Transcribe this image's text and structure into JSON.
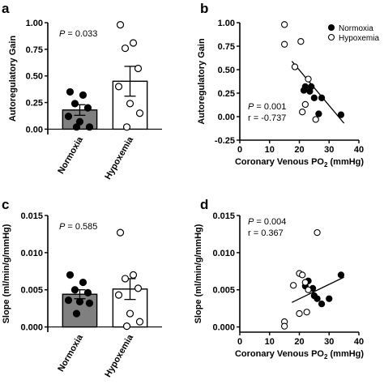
{
  "chart_data": [
    {
      "panel": "a",
      "type": "bar",
      "categories": [
        "Normoxia",
        "Hypoxemia"
      ],
      "ylabel": "Autoregulatory Gain",
      "ylim": [
        -0.05,
        1.0
      ],
      "yticks": [
        "0.00",
        "0.25",
        "0.50",
        "0.75",
        "1.00"
      ],
      "annotation": "P = 0.033",
      "means": [
        0.18,
        0.45
      ],
      "errors": [
        0.05,
        0.14
      ],
      "bar_colors": [
        "#808080",
        "#ffffff"
      ],
      "points": [
        [
          0.35,
          0.32,
          0.24,
          0.2,
          0.12,
          0.07,
          0.02,
          0.02
        ],
        [
          0.98,
          0.81,
          0.76,
          0.57,
          0.4,
          0.24,
          0.15,
          0.02
        ]
      ]
    },
    {
      "panel": "b",
      "type": "scatter",
      "xlabel_main": "Coronary Venous PO",
      "xlabel_sub": "2",
      "xlabel_tail": " (mmHg)",
      "ylabel": "Autoregulatory Gain",
      "xlim": [
        0,
        40
      ],
      "ylim": [
        -0.25,
        1.0
      ],
      "xticks": [
        "0",
        "10",
        "20",
        "30",
        "40"
      ],
      "yticks": [
        "-0.25",
        "0.00",
        "0.25",
        "0.50",
        "0.75",
        "1.00"
      ],
      "legend": [
        "Normoxia",
        "Hypoxemia"
      ],
      "legend_position": "top-right",
      "annotation_p": "P = 0.001",
      "annotation_r": "r = -0.737",
      "series": [
        {
          "name": "Normoxia",
          "fill": "#000000",
          "x": [
            22.0,
            24.0,
            23.5,
            21.5,
            25.0,
            26.5,
            27.5,
            34.0
          ],
          "y": [
            0.32,
            0.32,
            0.27,
            0.28,
            0.2,
            0.03,
            0.2,
            0.02
          ]
        },
        {
          "name": "Hypoxemia",
          "fill": "#ffffff",
          "x": [
            15.0,
            20.5,
            15.0,
            18.5,
            23.0,
            22.0,
            21.0,
            25.5
          ],
          "y": [
            0.98,
            0.8,
            0.77,
            0.53,
            0.4,
            0.13,
            0.05,
            -0.03
          ]
        }
      ],
      "fit_line": {
        "x": [
          17.5,
          35.0
        ],
        "y": [
          0.59,
          -0.07
        ]
      }
    },
    {
      "panel": "c",
      "type": "bar",
      "categories": [
        "Normoxia",
        "Hypoxemia"
      ],
      "ylabel": "Slope (ml/min/g/mmHg)",
      "ylim": [
        -0.0007,
        0.015
      ],
      "yticks": [
        "0.000",
        "0.005",
        "0.010",
        "0.015"
      ],
      "annotation": "P = 0.585",
      "means": [
        0.0044,
        0.0051
      ],
      "errors": [
        0.0006,
        0.0014
      ],
      "bar_colors": [
        "#808080",
        "#ffffff"
      ],
      "points": [
        [
          0.007,
          0.006,
          0.005,
          0.0046,
          0.0036,
          0.0034,
          0.0032,
          0.0018
        ],
        [
          0.0127,
          0.007,
          0.0065,
          0.0052,
          0.0043,
          0.0018,
          0.0007,
          0.0001
        ]
      ]
    },
    {
      "panel": "d",
      "type": "scatter",
      "xlabel_main": "Coronary Venous PO",
      "xlabel_sub": "2",
      "xlabel_tail": " (mmHg)",
      "ylabel": "Slope (ml/min/g/mmHg)",
      "xlim": [
        0,
        40
      ],
      "ylim": [
        -0.0007,
        0.015
      ],
      "xticks": [
        "0",
        "10",
        "20",
        "30",
        "40"
      ],
      "yticks": [
        "0.000",
        "0.005",
        "0.010",
        "0.015"
      ],
      "annotation_p": "P = 0.004",
      "annotation_r": "r = 0.367",
      "series": [
        {
          "name": "Normoxia",
          "fill": "#000000",
          "x": [
            22.0,
            23.0,
            24.5,
            25.0,
            26.0,
            27.5,
            30.0,
            34.0
          ],
          "y": [
            0.0055,
            0.0062,
            0.0052,
            0.0042,
            0.0038,
            0.0031,
            0.0038,
            0.007
          ]
        },
        {
          "name": "Hypoxemia",
          "fill": "#ffffff",
          "x": [
            15.0,
            15.0,
            18.0,
            20.0,
            21.0,
            22.0,
            22.5,
            26.0,
            20.0,
            23.0
          ],
          "y": [
            0.0007,
            0.0001,
            0.0056,
            0.0072,
            0.007,
            0.006,
            0.002,
            0.0127,
            0.0018,
            0.005
          ]
        }
      ],
      "fit_line": {
        "x": [
          17.5,
          35.0
        ],
        "y": [
          0.0033,
          0.0067
        ]
      }
    }
  ]
}
